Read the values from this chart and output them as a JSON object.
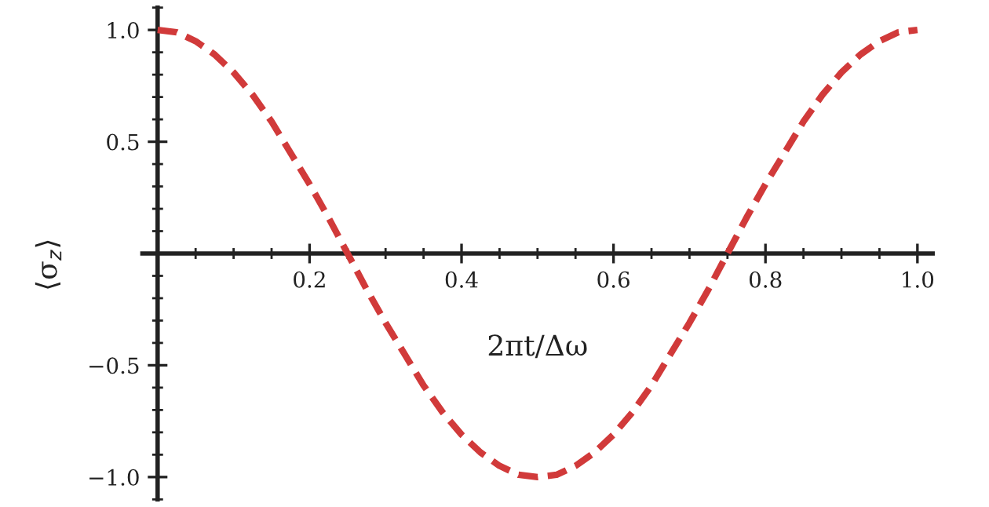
{
  "chart_data": {
    "type": "line",
    "xlabel": "2πt/Δω",
    "ylabel": "⟨σ$_{z}$⟩",
    "x": [
      0,
      0.025,
      0.05,
      0.075,
      0.1,
      0.125,
      0.15,
      0.175,
      0.2,
      0.225,
      0.25,
      0.275,
      0.3,
      0.325,
      0.35,
      0.375,
      0.4,
      0.425,
      0.45,
      0.475,
      0.5,
      0.525,
      0.55,
      0.575,
      0.6,
      0.625,
      0.65,
      0.675,
      0.7,
      0.725,
      0.75,
      0.775,
      0.8,
      0.825,
      0.85,
      0.875,
      0.9,
      0.925,
      0.95,
      0.975,
      1.0
    ],
    "series": [
      {
        "color": "#d13a3a",
        "values": [
          1.0,
          0.99,
          0.95,
          0.89,
          0.81,
          0.71,
          0.59,
          0.45,
          0.31,
          0.16,
          0.0,
          -0.16,
          -0.31,
          -0.45,
          -0.59,
          -0.71,
          -0.81,
          -0.89,
          -0.95,
          -0.99,
          -1.0,
          -0.99,
          -0.95,
          -0.89,
          -0.81,
          -0.71,
          -0.59,
          -0.45,
          -0.31,
          -0.16,
          0.0,
          0.16,
          0.31,
          0.45,
          0.59,
          0.71,
          0.81,
          0.89,
          0.95,
          0.99,
          1.0
        ]
      }
    ],
    "line_style": "dashed",
    "xlim": [
      -0.02,
      1.02
    ],
    "ylim": [
      -1.1,
      1.1
    ],
    "xticks": [
      0.2,
      0.4,
      0.6,
      0.8,
      {
        "value": 1.0,
        "label": "1.0"
      }
    ],
    "yticks": [
      {
        "value": -1.0,
        "label": "−1.0"
      },
      {
        "value": -0.5,
        "label": "−0.5"
      },
      0.5,
      {
        "value": 1.0,
        "label": "1.0"
      }
    ]
  }
}
